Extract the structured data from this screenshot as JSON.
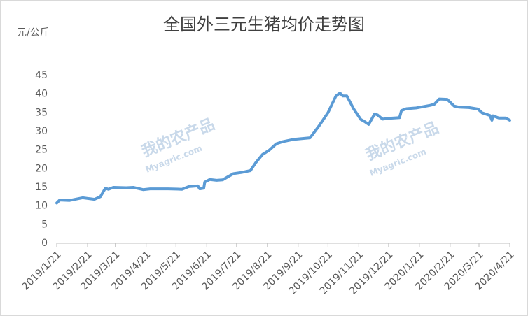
{
  "chart_data": {
    "type": "line",
    "title": "全国外三元生猪均价走势图",
    "y_label": "元/公斤",
    "watermark": [
      "我的农产品",
      "Myagric.com"
    ],
    "xlim": [
      "2019/1/21",
      "2020/4/21"
    ],
    "xticks": [
      "2019/1/21",
      "2019/2/21",
      "2019/3/21",
      "2019/4/21",
      "2019/5/21",
      "2019/6/21",
      "2019/7/21",
      "2019/8/21",
      "2019/9/21",
      "2019/10/21",
      "2019/11/21",
      "2019/12/21",
      "2020/1/21",
      "2020/2/21",
      "2020/3/21",
      "2020/4/21"
    ],
    "ylim": [
      0,
      45
    ],
    "yticks": [
      0,
      5,
      10,
      15,
      20,
      25,
      30,
      35,
      40,
      45
    ],
    "grid": false,
    "x": [
      "2019/1/21",
      "2019/1/24",
      "2019/2/3",
      "2019/2/16",
      "2019/2/28",
      "2019/3/6",
      "2019/3/11",
      "2019/3/14",
      "2019/3/19",
      "2019/4/1",
      "2019/4/8",
      "2019/4/18",
      "2019/4/25",
      "2019/5/13",
      "2019/5/27",
      "2019/6/3",
      "2019/6/12",
      "2019/6/14",
      "2019/6/18",
      "2019/6/19",
      "2019/6/24",
      "2019/7/1",
      "2019/7/7",
      "2019/7/12",
      "2019/7/18",
      "2019/7/26",
      "2019/8/4",
      "2019/8/9",
      "2019/8/16",
      "2019/8/23",
      "2019/8/30",
      "2019/9/6",
      "2019/9/17",
      "2019/10/3",
      "2019/10/12",
      "2019/10/21",
      "2019/10/29",
      "2019/11/2",
      "2019/11/5",
      "2019/11/9",
      "2019/11/16",
      "2019/11/23",
      "2019/11/26",
      "2019/12/1",
      "2019/12/7",
      "2019/12/10",
      "2019/12/15",
      "2019/12/21",
      "2020/1/1",
      "2020/1/3",
      "2020/1/8",
      "2020/1/18",
      "2020/2/1",
      "2020/2/5",
      "2020/2/10",
      "2020/2/18",
      "2020/2/25",
      "2020/3/1",
      "2020/3/11",
      "2020/3/20",
      "2020/3/24",
      "2020/4/1",
      "2020/4/3",
      "2020/4/4",
      "2020/4/10",
      "2020/4/17",
      "2020/4/21"
    ],
    "series": [
      {
        "color": "#5b9bd5",
        "values": [
          10.8,
          11.6,
          11.5,
          12.2,
          11.8,
          12.5,
          14.8,
          14.5,
          15.0,
          14.9,
          15.0,
          14.4,
          14.6,
          14.6,
          14.5,
          15.2,
          15.4,
          14.6,
          14.8,
          16.4,
          17.1,
          16.9,
          17.0,
          17.8,
          18.7,
          19.0,
          19.5,
          21.5,
          23.8,
          25.0,
          26.7,
          27.3,
          27.9,
          28.3,
          31.5,
          35.0,
          39.5,
          40.3,
          39.5,
          39.5,
          36.0,
          33.2,
          32.8,
          31.9,
          34.7,
          34.4,
          33.3,
          33.5,
          33.7,
          35.6,
          36.1,
          36.3,
          37.0,
          37.3,
          38.7,
          38.6,
          36.8,
          36.5,
          36.4,
          36.0,
          35.0,
          34.3,
          33.0,
          34.2,
          33.6,
          33.6,
          33.0
        ]
      }
    ]
  }
}
